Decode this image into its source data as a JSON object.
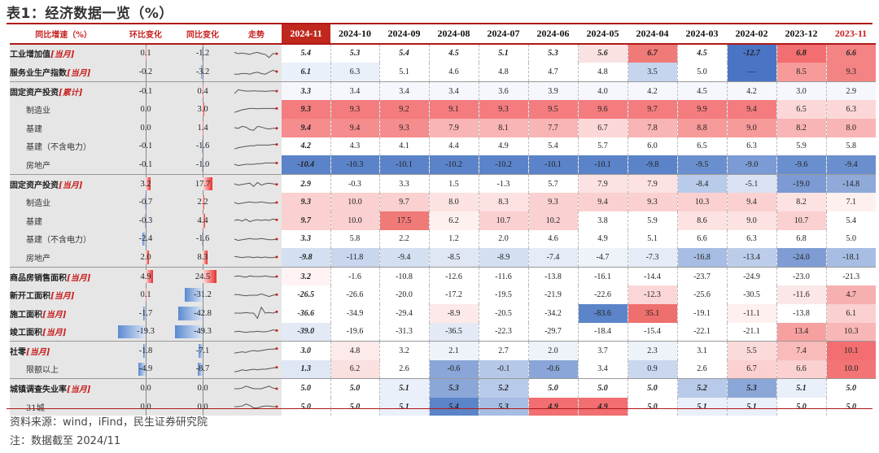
{
  "title": "表1：经济数据一览（%）",
  "header": {
    "label_col": "同比增速（%）",
    "mom_col": "环比变化",
    "yoy_col": "同比变化",
    "trend_col": "走势",
    "months": [
      "2024-11",
      "2024-10",
      "2024-09",
      "2024-08",
      "2024-07",
      "2024-06",
      "2024-05",
      "2024-04",
      "2024-03",
      "2024-02",
      "2023-12",
      "2023-11"
    ]
  },
  "rows": [
    {
      "name": "工业增加值",
      "tag": "[当月]",
      "level": 0,
      "mom": "0.1",
      "yoy": "-1.2",
      "values": [
        "5.4",
        "5.3",
        "5.4",
        "4.5",
        "5.1",
        "5.3",
        "5.6",
        "6.7",
        "4.5",
        "-12.7",
        "6.8",
        "6.6"
      ],
      "colors": [
        "#ffffff",
        "#ffffff",
        "#ffffff",
        "#ffffff",
        "#ffffff",
        "#ffffff",
        "#fbe2e2",
        "#f07a78",
        "#ffffff",
        "#4a74c4",
        "#f26e70",
        "#f48384"
      ],
      "bold": true,
      "spark": [
        0.6,
        0.5,
        0.55,
        0.5,
        0.45,
        0.55,
        0.6,
        0.5,
        0.45,
        0.2,
        0.5,
        0.5
      ]
    },
    {
      "name": "服务业生产指数",
      "tag": "[当月]",
      "level": 0,
      "mom": "-0.2",
      "yoy": "-3.2",
      "values": [
        "6.1",
        "6.3",
        "5.1",
        "4.6",
        "4.8",
        "4.7",
        "4.8",
        "3.5",
        "5.0",
        "—",
        "8.5",
        "9.3"
      ],
      "colors": [
        "#eaf0fa",
        "#eaf0fa",
        "#ffffff",
        "#ffffff",
        "#ffffff",
        "#ffffff",
        "#ffffff",
        "#c5d5ee",
        "#ffffff",
        "#4a74c4",
        "#f79a9a",
        "#f48384"
      ],
      "bold": false,
      "spark": [
        0.3,
        0.3,
        0.35,
        0.35,
        0.3,
        0.4,
        0.45,
        0.35,
        0.3,
        0.45,
        0.6,
        0.5
      ]
    },
    {
      "name": "固定资产投资",
      "tag": "[累计]",
      "level": 0,
      "mom": "-0.1",
      "yoy": "0.4",
      "values": [
        "3.3",
        "3.4",
        "3.4",
        "3.4",
        "3.6",
        "3.9",
        "4.0",
        "4.2",
        "4.5",
        "4.2",
        "3.0",
        "2.9"
      ],
      "colors": [
        "#f5f7fc",
        "#f5f7fc",
        "#f5f7fc",
        "#f5f7fc",
        "#f5f7fc",
        "#f5f7fc",
        "#f5f7fc",
        "#f5f7fc",
        "#f5f7fc",
        "#f5f7fc",
        "#f5f7fc",
        "#f5f7fc"
      ],
      "bold": false,
      "sep": true,
      "spark": [
        0.3,
        0.6,
        0.55,
        0.5,
        0.5,
        0.52,
        0.5,
        0.5,
        0.48,
        0.5,
        0.52,
        0.5
      ]
    },
    {
      "name": "制造业",
      "tag": "",
      "level": 1,
      "mom": "0.0",
      "yoy": "3.0",
      "values": [
        "9.3",
        "9.3",
        "9.2",
        "9.1",
        "9.3",
        "9.5",
        "9.6",
        "9.7",
        "9.9",
        "9.4",
        "6.5",
        "6.3"
      ],
      "colors": [
        "#f47c7e",
        "#f47c7e",
        "#f47c7e",
        "#f47c7e",
        "#f47c7e",
        "#f47c7e",
        "#f47c7e",
        "#f47c7e",
        "#f47c7e",
        "#f47c7e",
        "#fcd7d7",
        "#fcd7d7"
      ],
      "bold": false,
      "spark": [
        0.3,
        0.4,
        0.5,
        0.55,
        0.6,
        0.6,
        0.58,
        0.6,
        0.6,
        0.6,
        0.6,
        0.6
      ]
    },
    {
      "name": "基建",
      "tag": "",
      "level": 1,
      "mom": "0.0",
      "yoy": "1.4",
      "values": [
        "9.4",
        "9.4",
        "9.3",
        "7.9",
        "8.1",
        "7.7",
        "6.7",
        "7.8",
        "8.8",
        "9.0",
        "8.2",
        "8.0"
      ],
      "colors": [
        "#f58c8e",
        "#f58c8e",
        "#f58c8e",
        "#f9b4b5",
        "#f9b4b5",
        "#f9b4b5",
        "#fcd7d7",
        "#f9b4b5",
        "#f79a9a",
        "#f79a9a",
        "#f9b4b5",
        "#f9b4b5"
      ],
      "bold": false,
      "spark": [
        0.5,
        0.45,
        0.6,
        0.55,
        0.35,
        0.3,
        0.6,
        0.55,
        0.45,
        0.4,
        0.45,
        0.45
      ]
    },
    {
      "name": "基建（不含电力）",
      "tag": "",
      "level": 1,
      "mom": "-0.1",
      "yoy": "-1.6",
      "values": [
        "4.2",
        "4.3",
        "4.1",
        "4.4",
        "4.9",
        "5.4",
        "5.7",
        "6.0",
        "6.5",
        "6.3",
        "5.9",
        "5.8"
      ],
      "colors": [
        "#ffffff",
        "#ffffff",
        "#ffffff",
        "#ffffff",
        "#ffffff",
        "#ffffff",
        "#ffffff",
        "#ffffff",
        "#ffffff",
        "#ffffff",
        "#ffffff",
        "#ffffff"
      ],
      "bold": false,
      "spark": [
        0.3,
        0.4,
        0.45,
        0.5,
        0.55,
        0.55,
        0.6,
        0.6,
        0.6,
        0.6,
        0.65,
        0.65
      ]
    },
    {
      "name": "房地产",
      "tag": "",
      "level": 1,
      "mom": "-0.1",
      "yoy": "-1.0",
      "values": [
        "-10.4",
        "-10.3",
        "-10.1",
        "-10.2",
        "-10.2",
        "-10.1",
        "-10.1",
        "-9.8",
        "-9.5",
        "-9.0",
        "-9.6",
        "-9.4"
      ],
      "colors": [
        "#5b83c9",
        "#5b83c9",
        "#5b83c9",
        "#5b83c9",
        "#5b83c9",
        "#5b83c9",
        "#5b83c9",
        "#5b83c9",
        "#6a8fce",
        "#7a9bd3",
        "#6a8fce",
        "#6a8fce"
      ],
      "bold": false,
      "spark": [
        0.5,
        0.4,
        0.45,
        0.5,
        0.5,
        0.5,
        0.55,
        0.55,
        0.6,
        0.6,
        0.6,
        0.6
      ]
    },
    {
      "name": "固定资产投资",
      "tag": "[当月]",
      "level": 0,
      "mom": "3.2",
      "yoy": "17.7",
      "values": [
        "2.9",
        "-0.3",
        "3.3",
        "1.5",
        "-1.3",
        "5.7",
        "7.9",
        "7.9",
        "-8.4",
        "-5.1",
        "-19.0",
        "-14.8"
      ],
      "colors": [
        "#ffffff",
        "#ffffff",
        "#ffffff",
        "#ffffff",
        "#ffffff",
        "#ffffff",
        "#fce2e2",
        "#fce2e2",
        "#b9cbea",
        "#d8e2f3",
        "#7c9ad3",
        "#8fa9d9"
      ],
      "bold": false,
      "sep": true,
      "spark": [
        0.5,
        0.4,
        0.45,
        0.5,
        0.55,
        0.3,
        0.6,
        0.4,
        0.5,
        0.55,
        0.5,
        0.45
      ]
    },
    {
      "name": "制造业",
      "tag": "",
      "level": 1,
      "mom": "-0.7",
      "yoy": "2.2",
      "values": [
        "9.3",
        "10.0",
        "9.7",
        "8.0",
        "8.3",
        "9.3",
        "9.4",
        "9.3",
        "10.3",
        "9.4",
        "8.2",
        "7.1"
      ],
      "colors": [
        "#fbd0d0",
        "#fbd0d0",
        "#fbd0d0",
        "#fde2e2",
        "#fde2e2",
        "#fbd0d0",
        "#fbd0d0",
        "#fbd0d0",
        "#fbd0d0",
        "#fbd0d0",
        "#fde2e2",
        "#fff0f0"
      ],
      "bold": false,
      "spark": [
        0.5,
        0.4,
        0.45,
        0.5,
        0.55,
        0.5,
        0.5,
        0.55,
        0.5,
        0.45,
        0.45,
        0.5
      ]
    },
    {
      "name": "基建",
      "tag": "",
      "level": 1,
      "mom": "-0.3",
      "yoy": "4.4",
      "values": [
        "9.7",
        "10.0",
        "17.5",
        "6.2",
        "10.7",
        "10.2",
        "3.8",
        "5.9",
        "8.6",
        "9.0",
        "10.7",
        "5.4"
      ],
      "colors": [
        "#fbd0d0",
        "#fbd0d0",
        "#f07a78",
        "#fff0f0",
        "#fbd0d0",
        "#fbd0d0",
        "#ffffff",
        "#ffffff",
        "#fde2e2",
        "#fde2e2",
        "#fbd0d0",
        "#ffffff"
      ],
      "bold": false,
      "spark": [
        0.5,
        0.55,
        0.45,
        0.6,
        0.4,
        0.5,
        0.55,
        0.5,
        0.55,
        0.5,
        0.6,
        0.55
      ]
    },
    {
      "name": "基建（不含电力）",
      "tag": "",
      "level": 1,
      "mom": "-2.4",
      "yoy": "-1.6",
      "values": [
        "3.3",
        "5.8",
        "2.2",
        "1.2",
        "2.0",
        "4.6",
        "4.9",
        "5.1",
        "6.6",
        "6.3",
        "6.8",
        "5.0"
      ],
      "colors": [
        "#ffffff",
        "#ffffff",
        "#ffffff",
        "#ffffff",
        "#ffffff",
        "#ffffff",
        "#ffffff",
        "#ffffff",
        "#ffffff",
        "#ffffff",
        "#ffffff",
        "#ffffff"
      ],
      "bold": false,
      "spark": [
        0.5,
        0.4,
        0.45,
        0.5,
        0.55,
        0.5,
        0.5,
        0.55,
        0.5,
        0.45,
        0.45,
        0.5
      ]
    },
    {
      "name": "房地产",
      "tag": "",
      "level": 1,
      "mom": "2.0",
      "yoy": "8.3",
      "values": [
        "-9.8",
        "-11.8",
        "-9.4",
        "-8.5",
        "-8.9",
        "-7.4",
        "-4.7",
        "-7.3",
        "-16.8",
        "-13.4",
        "-24.0",
        "-18.1"
      ],
      "colors": [
        "#d4dff1",
        "#c8d6ee",
        "#d4dff1",
        "#dfe7f5",
        "#d4dff1",
        "#e5ecf7",
        "#eef3fa",
        "#e5ecf7",
        "#a7bde3",
        "#bccde9",
        "#7f9dd4",
        "#a7bde3"
      ],
      "bold": false,
      "spark": [
        0.55,
        0.5,
        0.45,
        0.5,
        0.5,
        0.45,
        0.5,
        0.45,
        0.5,
        0.45,
        0.45,
        0.5
      ]
    },
    {
      "name": "商品房销售面积",
      "tag": "[当月]",
      "level": 0,
      "mom": "4.9",
      "yoy": "24.5",
      "values": [
        "3.2",
        "-1.6",
        "-10.8",
        "-12.6",
        "-11.6",
        "-13.8",
        "-16.1",
        "-14.4",
        "-23.7",
        "-24.9",
        "-23.0",
        "-21.3"
      ],
      "colors": [
        "#fff3f3",
        "#ffffff",
        "#ffffff",
        "#ffffff",
        "#ffffff",
        "#ffffff",
        "#ffffff",
        "#ffffff",
        "#ffffff",
        "#ffffff",
        "#ffffff",
        "#ffffff"
      ],
      "bold": false,
      "sep": true,
      "spark": [
        0.5,
        0.55,
        0.5,
        0.45,
        0.55,
        0.5,
        0.5,
        0.5,
        0.55,
        0.5,
        0.45,
        0.5
      ]
    },
    {
      "name": "新开工面积",
      "tag": "[当月]",
      "level": 0,
      "mom": "0.1",
      "yoy": "-31.2",
      "values": [
        "-26.5",
        "-26.6",
        "-20.0",
        "-17.2",
        "-19.5",
        "-21.9",
        "-22.6",
        "-12.3",
        "-25.6",
        "-30.5",
        "-11.6",
        "4.7"
      ],
      "colors": [
        "#ffffff",
        "#ffffff",
        "#ffffff",
        "#ffffff",
        "#ffffff",
        "#ffffff",
        "#ffffff",
        "#fbd6d6",
        "#ffffff",
        "#ffffff",
        "#fbe7e7",
        "#f7b0b0"
      ],
      "bold": false,
      "spark": [
        0.55,
        0.55,
        0.5,
        0.45,
        0.5,
        0.5,
        0.5,
        0.6,
        0.5,
        0.4,
        0.5,
        0.55
      ]
    },
    {
      "name": "施工面积",
      "tag": "[当月]",
      "level": 0,
      "mom": "-1.7",
      "yoy": "-42.8",
      "values": [
        "-36.6",
        "-34.9",
        "-29.4",
        "-8.9",
        "-20.5",
        "-34.2",
        "-83.6",
        "35.1",
        "-19.1",
        "-11.1",
        "-13.8",
        "6.1"
      ],
      "colors": [
        "#ffffff",
        "#ffffff",
        "#ffffff",
        "#fde9e9",
        "#ffffff",
        "#ffffff",
        "#5c84c8",
        "#ee6f6e",
        "#ffffff",
        "#fff0f0",
        "#ffffff",
        "#fbd0d0"
      ],
      "bold": false,
      "spark": [
        0.5,
        0.5,
        0.5,
        0.55,
        0.5,
        0.5,
        0.1,
        0.95,
        0.5,
        0.55,
        0.5,
        0.6
      ]
    },
    {
      "name": "竣工面积",
      "tag": "[当月]",
      "level": 0,
      "mom": "-19.3",
      "yoy": "-49.3",
      "values": [
        "-39.0",
        "-19.6",
        "-31.3",
        "-36.5",
        "-22.3",
        "-29.7",
        "-18.4",
        "-15.4",
        "-22.1",
        "-21.1",
        "13.4",
        "10.3"
      ],
      "colors": [
        "#e3eaf6",
        "#ffffff",
        "#ffffff",
        "#e3eaf6",
        "#ffffff",
        "#ffffff",
        "#ffffff",
        "#ffffff",
        "#ffffff",
        "#ffffff",
        "#f7a0a0",
        "#f9b6b6"
      ],
      "bold": false,
      "spark": [
        0.5,
        0.55,
        0.5,
        0.45,
        0.5,
        0.5,
        0.55,
        0.5,
        0.5,
        0.55,
        0.65,
        0.6
      ]
    },
    {
      "name": "社零",
      "tag": "[当月]",
      "level": 0,
      "mom": "-1.8",
      "yoy": "-7.1",
      "values": [
        "3.0",
        "4.8",
        "3.2",
        "2.1",
        "2.7",
        "2.0",
        "3.7",
        "2.3",
        "3.1",
        "5.5",
        "7.4",
        "10.1"
      ],
      "colors": [
        "#ffffff",
        "#fdeaea",
        "#ffffff",
        "#eef3fa",
        "#ffffff",
        "#eef3fa",
        "#ffffff",
        "#eef3fa",
        "#ffffff",
        "#fbdada",
        "#f9baba",
        "#f26e70"
      ],
      "bold": false,
      "sep": true,
      "spark": [
        0.3,
        0.35,
        0.4,
        0.35,
        0.45,
        0.5,
        0.45,
        0.5,
        0.55,
        0.6,
        0.6,
        0.65
      ]
    },
    {
      "name": "限额以上",
      "tag": "",
      "level": 1,
      "mom": "-4.9",
      "yoy": "-8.7",
      "values": [
        "1.3",
        "6.2",
        "2.6",
        "-0.6",
        "-0.1",
        "-0.6",
        "3.4",
        "0.9",
        "2.6",
        "6.7",
        "6.6",
        "10.0"
      ],
      "colors": [
        "#dfe7f5",
        "#fbe0e0",
        "#ffffff",
        "#8aa6d8",
        "#b5c8e8",
        "#8aa6d8",
        "#ffffff",
        "#c9d7ef",
        "#ffffff",
        "#fbd0d0",
        "#fbd0d0",
        "#f37475"
      ],
      "bold": false,
      "spark": [
        0.3,
        0.35,
        0.45,
        0.4,
        0.45,
        0.5,
        0.45,
        0.5,
        0.5,
        0.55,
        0.6,
        0.65
      ]
    },
    {
      "name": "城镇调查失业率",
      "tag": "[当月]",
      "level": 0,
      "mom": "0.0",
      "yoy": "0.0",
      "values": [
        "5.0",
        "5.0",
        "5.1",
        "5.3",
        "5.2",
        "5.0",
        "5.0",
        "5.0",
        "5.2",
        "5.3",
        "5.1",
        "5.0"
      ],
      "colors": [
        "#ffffff",
        "#ffffff",
        "#eaf0fa",
        "#8ba7d8",
        "#b8cae9",
        "#ffffff",
        "#ffffff",
        "#ffffff",
        "#b8cae9",
        "#8ba7d8",
        "#eaf0fa",
        "#ffffff"
      ],
      "bold": true,
      "sep": true,
      "spark": [
        0.5,
        0.5,
        0.55,
        0.7,
        0.6,
        0.5,
        0.5,
        0.5,
        0.6,
        0.7,
        0.55,
        0.5
      ]
    },
    {
      "name": "31城",
      "tag": "",
      "level": 1,
      "mom": "0.0",
      "yoy": "0.0",
      "values": [
        "5.0",
        "5.0",
        "5.1",
        "5.4",
        "5.3",
        "4.9",
        "4.9",
        "5.0",
        "5.1",
        "5.1",
        "5.0",
        "5.0"
      ],
      "colors": [
        "#ffffff",
        "#ffffff",
        "#eaf0fa",
        "#5c84c8",
        "#a7bde3",
        "#f26e70",
        "#f26e70",
        "#ffffff",
        "#eaf0fa",
        "#eaf0fa",
        "#ffffff",
        "#ffffff"
      ],
      "bold": true,
      "spark": [
        0.5,
        0.5,
        0.55,
        0.7,
        0.6,
        0.4,
        0.4,
        0.5,
        0.55,
        0.55,
        0.5,
        0.5
      ]
    }
  ],
  "footer": {
    "source": "资料来源：wind，iFind，民生证券研究院",
    "note": "注：数据截至 2024/11"
  },
  "colors": {
    "accent": "#b01818",
    "header_current": "#c0281e",
    "tag": "#c82020"
  }
}
